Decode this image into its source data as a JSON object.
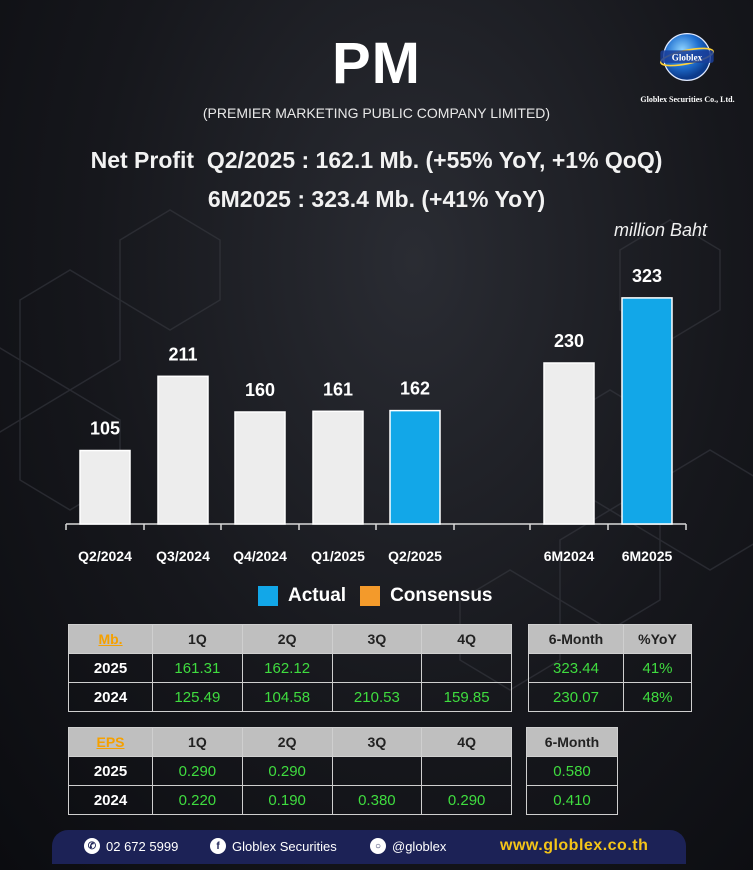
{
  "header": {
    "title": "PM",
    "subtitle": "(PREMIER MARKETING PUBLIC COMPANY LIMITED)",
    "logo_text": "Globlex",
    "logo_caption": "Globlex Securities Co., Ltd.",
    "headline1": "Net Profit  Q2/2025 : 162.1 Mb. (+55% YoY, +1% QoQ)",
    "headline2": "6M2025 : 323.4 Mb. (+41% YoY)",
    "unit": "million Baht"
  },
  "colors": {
    "actual": "#12a7e8",
    "consensus": "#f39a2b",
    "bar": "#ededed",
    "value_green": "#3fdc3f",
    "accent_orange": "#f5a000"
  },
  "chart_data": {
    "type": "bar",
    "categories": [
      "Q2/2024",
      "Q3/2024",
      "Q4/2024",
      "Q1/2025",
      "Q2/2025",
      "6M2024",
      "6M2025"
    ],
    "values": [
      105,
      211,
      160,
      161,
      162,
      230,
      323
    ],
    "value_labels": [
      "105",
      "211",
      "160",
      "161",
      "162",
      "230",
      "323"
    ],
    "highlight": [
      "none",
      "none",
      "none",
      "none",
      "actual",
      "none",
      "actual"
    ],
    "ylim": [
      0,
      380
    ],
    "legend": [
      {
        "name": "Actual",
        "color": "#12a7e8"
      },
      {
        "name": "Consensus",
        "color": "#f39a2b"
      }
    ],
    "legend_position": "bottom-center"
  },
  "profit_table": {
    "corner": "Mb.",
    "headers": [
      "1Q",
      "2Q",
      "3Q",
      "4Q"
    ],
    "rows": [
      {
        "year": "2025",
        "values": [
          "161.31",
          "162.12",
          "",
          ""
        ]
      },
      {
        "year": "2024",
        "values": [
          "125.49",
          "104.58",
          "210.53",
          "159.85"
        ]
      }
    ]
  },
  "profit_summary": {
    "headers": [
      "6-Month",
      "%YoY"
    ],
    "rows": [
      {
        "values": [
          "323.44",
          "41%"
        ]
      },
      {
        "values": [
          "230.07",
          "48%"
        ]
      }
    ]
  },
  "eps_table": {
    "corner": "EPS",
    "headers": [
      "1Q",
      "2Q",
      "3Q",
      "4Q"
    ],
    "rows": [
      {
        "year": "2025",
        "values": [
          "0.290",
          "0.290",
          "",
          ""
        ]
      },
      {
        "year": "2024",
        "values": [
          "0.220",
          "0.190",
          "0.380",
          "0.290"
        ]
      }
    ]
  },
  "eps_summary": {
    "headers": [
      "6-Month"
    ],
    "rows": [
      {
        "values": [
          "0.580"
        ]
      },
      {
        "values": [
          "0.410"
        ]
      }
    ]
  },
  "footer": {
    "phone": "02 672 5999",
    "facebook": "Globlex Securities",
    "line": "@globlex",
    "website": "www.globlex.co.th"
  }
}
